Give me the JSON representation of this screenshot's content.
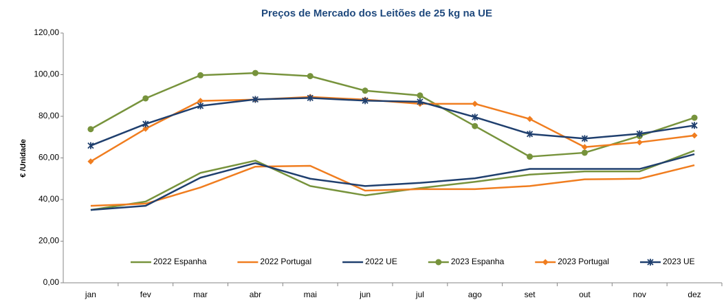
{
  "chart_data": {
    "type": "line",
    "title": "Preços de Mercado dos Leitões de 25 kg na UE",
    "y_label": "€ /Unidade",
    "categories": [
      "jan",
      "fev",
      "mar",
      "abr",
      "mai",
      "jun",
      "jul",
      "ago",
      "set",
      "out",
      "nov",
      "dez"
    ],
    "ylim": [
      0,
      120
    ],
    "yticks": [
      {
        "value": 0,
        "label": "0,00"
      },
      {
        "value": 20,
        "label": "20,00"
      },
      {
        "value": 40,
        "label": "40,00"
      },
      {
        "value": 60,
        "label": "60,00"
      },
      {
        "value": 80,
        "label": "80,00"
      },
      {
        "value": 100,
        "label": "100,00"
      },
      {
        "value": 120,
        "label": "120,00"
      }
    ],
    "grid": false,
    "legend": "bottom",
    "series": [
      {
        "name": "2022 Espanha",
        "color": "#77933c",
        "marker": "none",
        "values": [
          35,
          39,
          52.8,
          58.7,
          46.5,
          42,
          45.5,
          48.5,
          52,
          53.5,
          53.5,
          63.5
        ]
      },
      {
        "name": "2022 Portugal",
        "color": "#f07d1f",
        "marker": "none",
        "values": [
          37,
          38,
          45.8,
          55.8,
          56.2,
          44.3,
          45,
          45,
          46.5,
          49.7,
          50,
          56.5
        ]
      },
      {
        "name": "2022 UE",
        "color": "#1f3f6e",
        "marker": "none",
        "values": [
          35,
          37,
          50.5,
          57.5,
          50,
          46.5,
          48,
          50.2,
          54.7,
          54.7,
          54.7,
          61.8
        ]
      },
      {
        "name": "2023 Espanha",
        "color": "#77933c",
        "marker": "circle",
        "values": [
          73.8,
          88.6,
          99.7,
          100.8,
          99.3,
          92.3,
          90,
          75.3,
          60.6,
          62.5,
          70.5,
          79.3
        ]
      },
      {
        "name": "2023 Portugal",
        "color": "#f07d1f",
        "marker": "diamond",
        "values": [
          58.3,
          74,
          87.4,
          88,
          89.3,
          88,
          86,
          86,
          78.7,
          65.2,
          67.5,
          70.8
        ]
      },
      {
        "name": "2023 UE",
        "color": "#1f3f6e",
        "marker": "star",
        "values": [
          65.9,
          76.3,
          85,
          88.1,
          88.8,
          87.5,
          87,
          79.6,
          71.5,
          69.3,
          71.6,
          75.6
        ]
      }
    ]
  }
}
